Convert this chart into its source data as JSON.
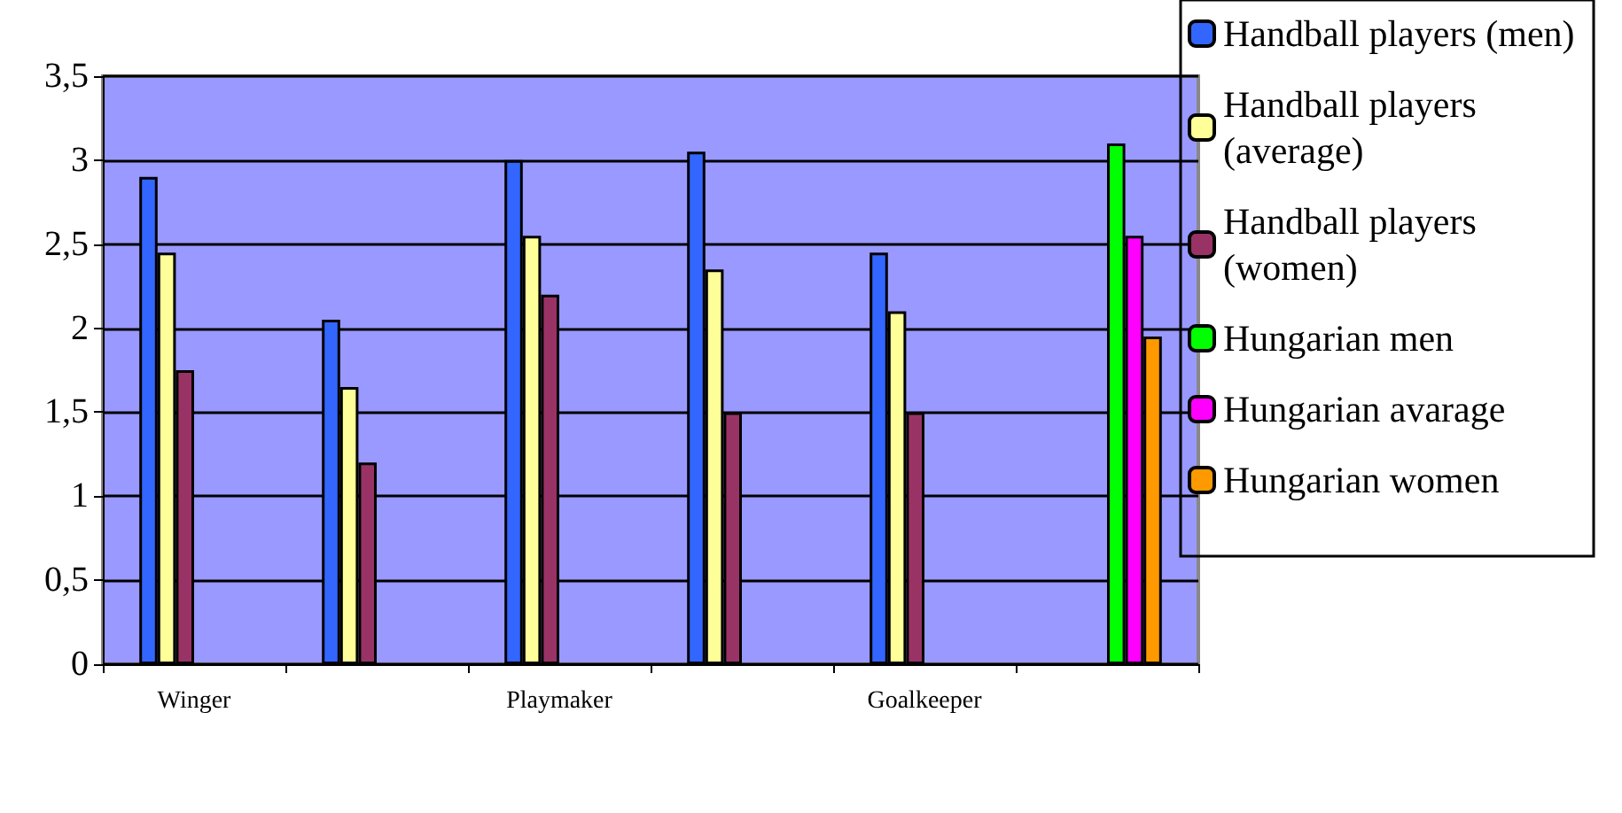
{
  "chart_data": {
    "type": "bar",
    "categories": [
      "Winger",
      null,
      "Playmaker",
      null,
      "Goalkeeper",
      null
    ],
    "series": [
      {
        "name": "Handball players (men)",
        "color": "#3366ff",
        "values": [
          2.9,
          2.05,
          3.0,
          3.05,
          2.45,
          null
        ]
      },
      {
        "name": "Handball players (average)",
        "color": "#ffff99",
        "values": [
          2.45,
          1.65,
          2.55,
          2.35,
          2.1,
          null
        ]
      },
      {
        "name": "Handball players (women)",
        "color": "#993366",
        "values": [
          1.75,
          1.2,
          2.2,
          1.5,
          1.5,
          null
        ]
      },
      {
        "name": "Hungarian men",
        "color": "#00ff00",
        "values": [
          null,
          null,
          null,
          null,
          null,
          3.1
        ]
      },
      {
        "name": "Hungarian avarage",
        "color": "#ff00ff",
        "values": [
          null,
          null,
          null,
          null,
          null,
          2.55
        ]
      },
      {
        "name": "Hungarian women",
        "color": "#ff9900",
        "values": [
          null,
          null,
          null,
          null,
          null,
          1.95
        ]
      }
    ],
    "ylim": [
      0,
      3.5
    ],
    "yticks": [
      {
        "value": 0,
        "label": "0"
      },
      {
        "value": 0.5,
        "label": "0,5"
      },
      {
        "value": 1,
        "label": "1"
      },
      {
        "value": 1.5,
        "label": "1,5"
      },
      {
        "value": 2,
        "label": "2"
      },
      {
        "value": 2.5,
        "label": "2,5"
      },
      {
        "value": 3,
        "label": "3"
      },
      {
        "value": 3.5,
        "label": "3,5"
      }
    ],
    "grid": "y",
    "legend": "right"
  }
}
